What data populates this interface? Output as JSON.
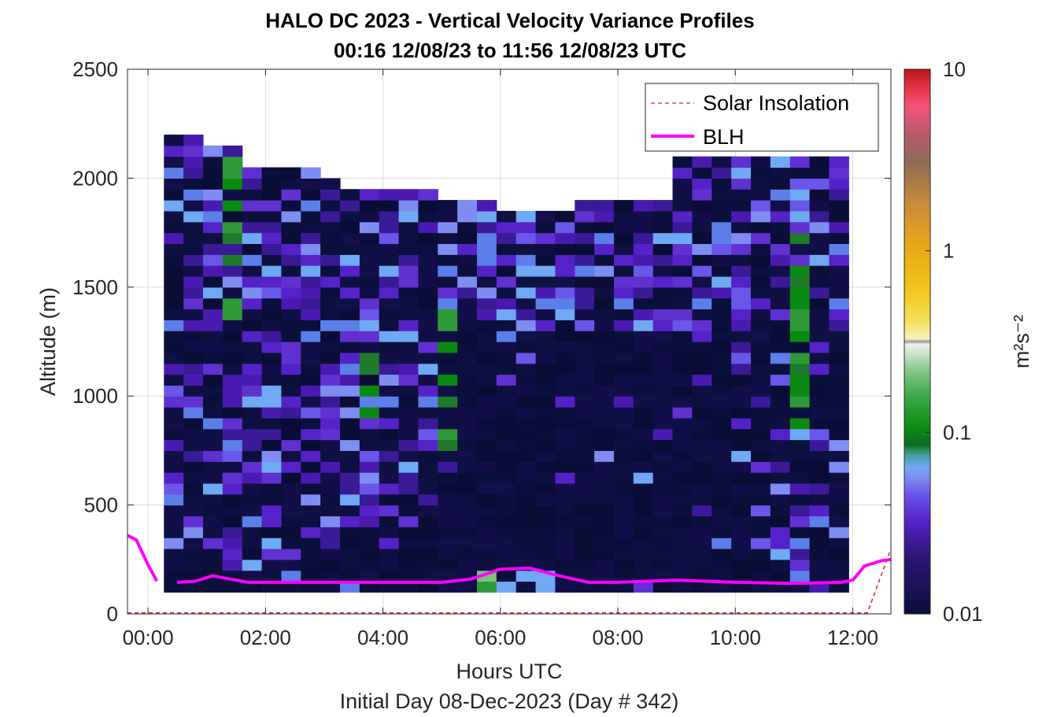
{
  "title_line1": "HALO DC 2023 - Vertical Velocity Variance Profiles",
  "title_line2": "00:16 12/08/23 to 11:56 12/08/23  UTC",
  "chart_data": {
    "type": "heatmap",
    "xlabel": "Hours UTC",
    "xlabel2": "Initial Day 08-Dec-2023 (Day # 342)",
    "ylabel": "Altitude (m)",
    "xlim": [
      -0.35,
      12.65
    ],
    "ylim": [
      0,
      2500
    ],
    "xticks": [
      0,
      2,
      4,
      6,
      8,
      10,
      12
    ],
    "xtick_labels": [
      "00:00",
      "02:00",
      "04:00",
      "06:00",
      "08:00",
      "10:00",
      "12:00"
    ],
    "yticks": [
      0,
      500,
      1000,
      1500,
      2000,
      2500
    ],
    "ytick_labels": [
      "0",
      "500",
      "1000",
      "1500",
      "2000",
      "2500"
    ],
    "grid": true,
    "legend_location": "top-right",
    "legend": [
      {
        "label": "Solar Insolation",
        "color": "#d62728",
        "style": "dashed"
      },
      {
        "label": "BLH",
        "color": "#ff00ff",
        "style": "solid"
      }
    ],
    "colorbar": {
      "label": "m²s⁻²",
      "scale": "log",
      "range": [
        0.01,
        10
      ],
      "ticks": [
        0.01,
        0.1,
        1,
        10
      ],
      "tick_labels": [
        "0.01",
        "0.1",
        "1",
        "10"
      ]
    },
    "variance_grid": {
      "time_range_hours": [
        0.27,
        11.93
      ],
      "altitude_range_m": [
        100,
        2200
      ],
      "value_range": "mostly 0.01–0.1 m²s⁻² (dark navy background with purple, blue and green cells)"
    },
    "blh": {
      "x": [
        -0.35,
        -0.2,
        0.0,
        0.15,
        0.5,
        0.8,
        1.1,
        1.4,
        1.7,
        2.0,
        3.0,
        4.0,
        5.0,
        5.5,
        6.0,
        6.5,
        7.0,
        7.5,
        8.0,
        9.0,
        10.0,
        11.0,
        11.8,
        12.0,
        12.2,
        12.5,
        12.65
      ],
      "y": [
        360,
        340,
        225,
        150,
        145,
        150,
        175,
        160,
        145,
        145,
        145,
        145,
        145,
        160,
        205,
        210,
        175,
        145,
        145,
        155,
        145,
        140,
        145,
        155,
        220,
        245,
        250
      ]
    },
    "solar_insolation": {
      "x": [
        -0.35,
        11.95,
        12.25,
        12.65
      ],
      "y": [
        5,
        5,
        5,
        300
      ]
    }
  }
}
